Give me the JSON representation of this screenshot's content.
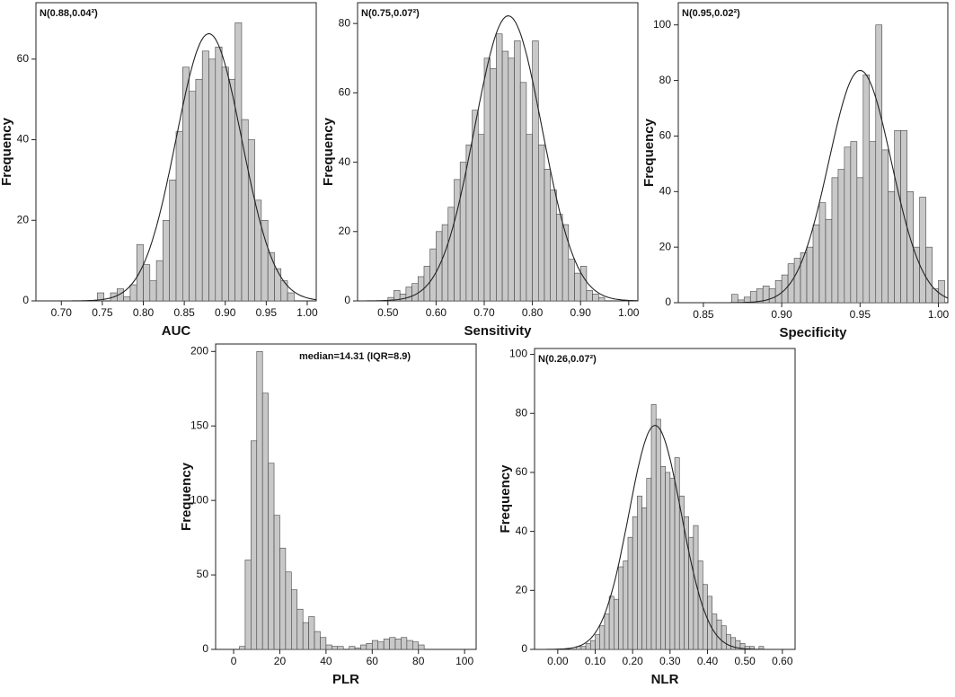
{
  "chart_data": [
    {
      "type": "histogram",
      "annotation": "N(0.88,0.04²)",
      "xlabel": "AUC",
      "ylabel": "Frequency",
      "bins": [
        0.744,
        0.752,
        0.76,
        0.768,
        0.776,
        0.784,
        0.792,
        0.8,
        0.808,
        0.816,
        0.824,
        0.832,
        0.84,
        0.848,
        0.856,
        0.864,
        0.872,
        0.88,
        0.888,
        0.896,
        0.904,
        0.912,
        0.92,
        0.928,
        0.936,
        0.944,
        0.952,
        0.96,
        0.968,
        0.976,
        0.984
      ],
      "values": [
        2,
        0,
        2,
        3,
        1,
        4,
        14,
        9,
        5,
        10,
        20,
        30,
        42,
        58,
        52,
        55,
        62,
        60,
        63,
        58,
        55,
        69,
        45,
        40,
        25,
        20,
        12,
        8,
        5,
        2
      ],
      "fit": {
        "mean": 0.88,
        "sd": 0.04
      },
      "color": "#c8c8c8",
      "xlim": [
        0.669,
        1.011
      ],
      "xticks": [
        {
          "value": 0.7,
          "label": "0.70"
        },
        0.75,
        {
          "value": 0.8,
          "label": "0.80"
        },
        0.85,
        {
          "value": 0.9,
          "label": "0.90"
        },
        0.95,
        {
          "value": 1,
          "label": "1.00"
        }
      ],
      "ylim": [
        0,
        74
      ],
      "yticks": [
        0,
        20,
        40,
        60
      ]
    },
    {
      "type": "histogram",
      "annotation": "N(0.75,0.07²)",
      "xlabel": "Sensitivity",
      "ylabel": "Frequency",
      "bins": [
        0.5,
        0.5125,
        0.525,
        0.5375,
        0.55,
        0.5625,
        0.575,
        0.5875,
        0.6,
        0.6125,
        0.625,
        0.6375,
        0.65,
        0.6625,
        0.675,
        0.6875,
        0.7,
        0.7125,
        0.725,
        0.7375,
        0.75,
        0.7625,
        0.775,
        0.7875,
        0.8,
        0.8125,
        0.825,
        0.8375,
        0.85,
        0.8625,
        0.875,
        0.8875,
        0.9,
        0.9125,
        0.925,
        0.9375,
        0.95
      ],
      "values": [
        1,
        3,
        2,
        4,
        5,
        7,
        10,
        15,
        20,
        22,
        27,
        35,
        40,
        45,
        55,
        48,
        70,
        67,
        77,
        72,
        70,
        75,
        63,
        48,
        75,
        45,
        38,
        32,
        25,
        22,
        12,
        8,
        10,
        3,
        2,
        1
      ],
      "fit": {
        "mean": 0.75,
        "sd": 0.07
      },
      "color": "#c8c8c8",
      "xlim": [
        0.437,
        1.019
      ],
      "xticks": [
        {
          "value": 0.5,
          "label": "0.50"
        },
        {
          "value": 0.6,
          "label": "0.60"
        },
        {
          "value": 0.7,
          "label": "0.70"
        },
        {
          "value": 0.8,
          "label": "0.80"
        },
        {
          "value": 0.9,
          "label": "0.90"
        },
        {
          "value": 1,
          "label": "1.00"
        }
      ],
      "ylim": [
        0,
        86
      ],
      "yticks": [
        0,
        20,
        40,
        60,
        80
      ]
    },
    {
      "type": "histogram",
      "annotation": "N(0.95,0.02²)",
      "xlabel": "Specificity",
      "ylabel": "Frequency",
      "bins": [
        0.868,
        0.872,
        0.876,
        0.88,
        0.884,
        0.888,
        0.892,
        0.896,
        0.9,
        0.904,
        0.908,
        0.912,
        0.916,
        0.92,
        0.924,
        0.928,
        0.932,
        0.936,
        0.94,
        0.944,
        0.948,
        0.952,
        0.956,
        0.96,
        0.964,
        0.968,
        0.972,
        0.976,
        0.98,
        0.984,
        0.988,
        0.992,
        0.996,
        1,
        1.004
      ],
      "values": [
        3,
        1,
        2,
        4,
        5,
        6,
        5,
        8,
        10,
        14,
        16,
        18,
        20,
        28,
        36,
        30,
        45,
        48,
        56,
        58,
        45,
        82,
        58,
        100,
        55,
        40,
        62,
        62,
        40,
        20,
        38,
        20,
        5,
        8
      ],
      "fit": {
        "mean": 0.95,
        "sd": 0.02
      },
      "color": "#c8c8c8",
      "xlim": [
        0.834,
        1.006
      ],
      "xticks": [
        0.85,
        {
          "value": 0.9,
          "label": "0.90"
        },
        0.95,
        {
          "value": 1,
          "label": "1.00"
        }
      ],
      "ylim": [
        0,
        108
      ],
      "yticks": [
        0,
        20,
        40,
        60,
        80,
        100
      ]
    },
    {
      "type": "histogram",
      "annotation": "median=14.31 (IQR=8.9)",
      "xlabel": "PLR",
      "ylabel": "Frequency",
      "bins": [
        2.5,
        5,
        7.5,
        10,
        12.5,
        15,
        17.5,
        20,
        22.5,
        25,
        27.5,
        30,
        32.5,
        35,
        37.5,
        40,
        42.5,
        45,
        47.5,
        50,
        52.5,
        55,
        57.5,
        60,
        62.5,
        65,
        67.5,
        70,
        72.5,
        75,
        77.5,
        80,
        82.5
      ],
      "values": [
        2,
        60,
        140,
        200,
        172,
        125,
        90,
        68,
        52,
        40,
        27,
        18,
        22,
        12,
        8,
        3,
        2,
        2,
        0,
        2,
        1,
        3,
        4,
        6,
        5,
        7,
        8,
        7,
        8,
        6,
        5,
        3
      ],
      "color": "#c8c8c8",
      "xlim": [
        -7.8,
        105
      ],
      "xticks": [
        0,
        20,
        40,
        60,
        80,
        100
      ],
      "ylim": [
        0,
        205
      ],
      "yticks": [
        0,
        50,
        100,
        150,
        200
      ]
    },
    {
      "type": "histogram",
      "annotation": "N(0.26,0.07²)",
      "xlabel": "NLR",
      "ylabel": "Frequency",
      "bins": [
        0.05,
        0.0625,
        0.075,
        0.0875,
        0.1,
        0.1125,
        0.125,
        0.1375,
        0.15,
        0.1625,
        0.175,
        0.1875,
        0.2,
        0.2125,
        0.225,
        0.2375,
        0.25,
        0.2625,
        0.275,
        0.2875,
        0.3,
        0.3125,
        0.325,
        0.3375,
        0.35,
        0.3625,
        0.375,
        0.3875,
        0.4,
        0.4125,
        0.425,
        0.4375,
        0.45,
        0.4625,
        0.475,
        0.4875,
        0.5,
        0.5125,
        0.525,
        0.5375,
        0.55
      ],
      "values": [
        1,
        1,
        2,
        3,
        5,
        8,
        12,
        18,
        17,
        28,
        30,
        38,
        45,
        52,
        48,
        58,
        83,
        78,
        62,
        60,
        58,
        65,
        52,
        45,
        38,
        42,
        30,
        22,
        18,
        12,
        10,
        8,
        5,
        4,
        3,
        2,
        1,
        1,
        0,
        1
      ],
      "fit": {
        "mean": 0.26,
        "sd": 0.07
      },
      "color": "#c8c8c8",
      "xlim": [
        -0.062,
        0.634
      ],
      "xticks": [
        {
          "value": 0,
          "label": "0.00"
        },
        {
          "value": 0.1,
          "label": "0.10"
        },
        {
          "value": 0.2,
          "label": "0.20"
        },
        {
          "value": 0.3,
          "label": "0.30"
        },
        {
          "value": 0.4,
          "label": "0.40"
        },
        {
          "value": 0.5,
          "label": "0.50"
        },
        {
          "value": 0.6,
          "label": "0.60"
        }
      ],
      "ylim": [
        0,
        102
      ],
      "yticks": [
        0,
        20,
        40,
        60,
        80,
        100
      ]
    }
  ]
}
